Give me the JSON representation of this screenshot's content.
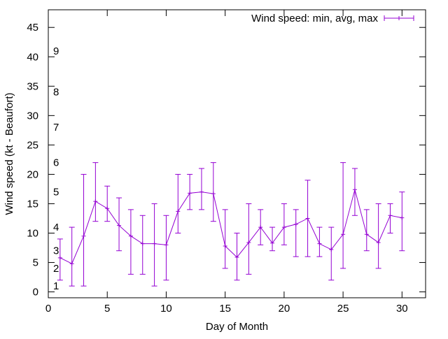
{
  "chart_data": {
    "type": "line",
    "title": "",
    "xlabel": "Day of Month",
    "ylabel": "Wind speed (kt - Beaufort)",
    "xlim": [
      0,
      32
    ],
    "ylim": [
      -1,
      48
    ],
    "x_ticks": [
      0,
      5,
      10,
      15,
      20,
      25,
      30
    ],
    "y_ticks": [
      0,
      5,
      10,
      15,
      20,
      25,
      30,
      35,
      40,
      45
    ],
    "grid": false,
    "legend": {
      "position": "top-right"
    },
    "series_color": "#9400d3",
    "beaufort_labels": [
      {
        "label": "1",
        "y": 1
      },
      {
        "label": "2",
        "y": 4
      },
      {
        "label": "3",
        "y": 7
      },
      {
        "label": "4",
        "y": 11
      },
      {
        "label": "5",
        "y": 17
      },
      {
        "label": "6",
        "y": 22
      },
      {
        "label": "7",
        "y": 28
      },
      {
        "label": "8",
        "y": 34
      },
      {
        "label": "9",
        "y": 41
      }
    ],
    "series": [
      {
        "name": "Wind speed: min, avg, max",
        "x": [
          1,
          2,
          3,
          4,
          5,
          6,
          7,
          8,
          9,
          10,
          11,
          12,
          13,
          14,
          15,
          16,
          17,
          18,
          19,
          20,
          21,
          22,
          23,
          24,
          25,
          26,
          27,
          28,
          29,
          30
        ],
        "avg": [
          5.8,
          4.8,
          9.5,
          15.4,
          14.2,
          11.3,
          9.5,
          8.2,
          8.2,
          8.0,
          13.7,
          16.8,
          17.0,
          16.7,
          7.8,
          5.9,
          8.4,
          11.0,
          8.3,
          11.0,
          11.5,
          12.5,
          8.2,
          7.2,
          9.8,
          17.4,
          9.8,
          8.4,
          13.0,
          12.6
        ],
        "min": [
          2,
          1,
          1,
          12,
          12,
          7,
          3,
          3,
          1,
          2,
          10,
          14,
          14,
          12,
          4,
          2,
          3,
          8,
          7,
          8,
          6,
          6,
          6,
          2,
          4,
          13,
          7,
          4,
          10,
          7
        ],
        "max": [
          9,
          11,
          20,
          22,
          18,
          16,
          14,
          13,
          15,
          13,
          20,
          20,
          21,
          22,
          14,
          10,
          15,
          14,
          11,
          15,
          14,
          19,
          11,
          11,
          22,
          21,
          14,
          15,
          15,
          17
        ]
      }
    ]
  }
}
